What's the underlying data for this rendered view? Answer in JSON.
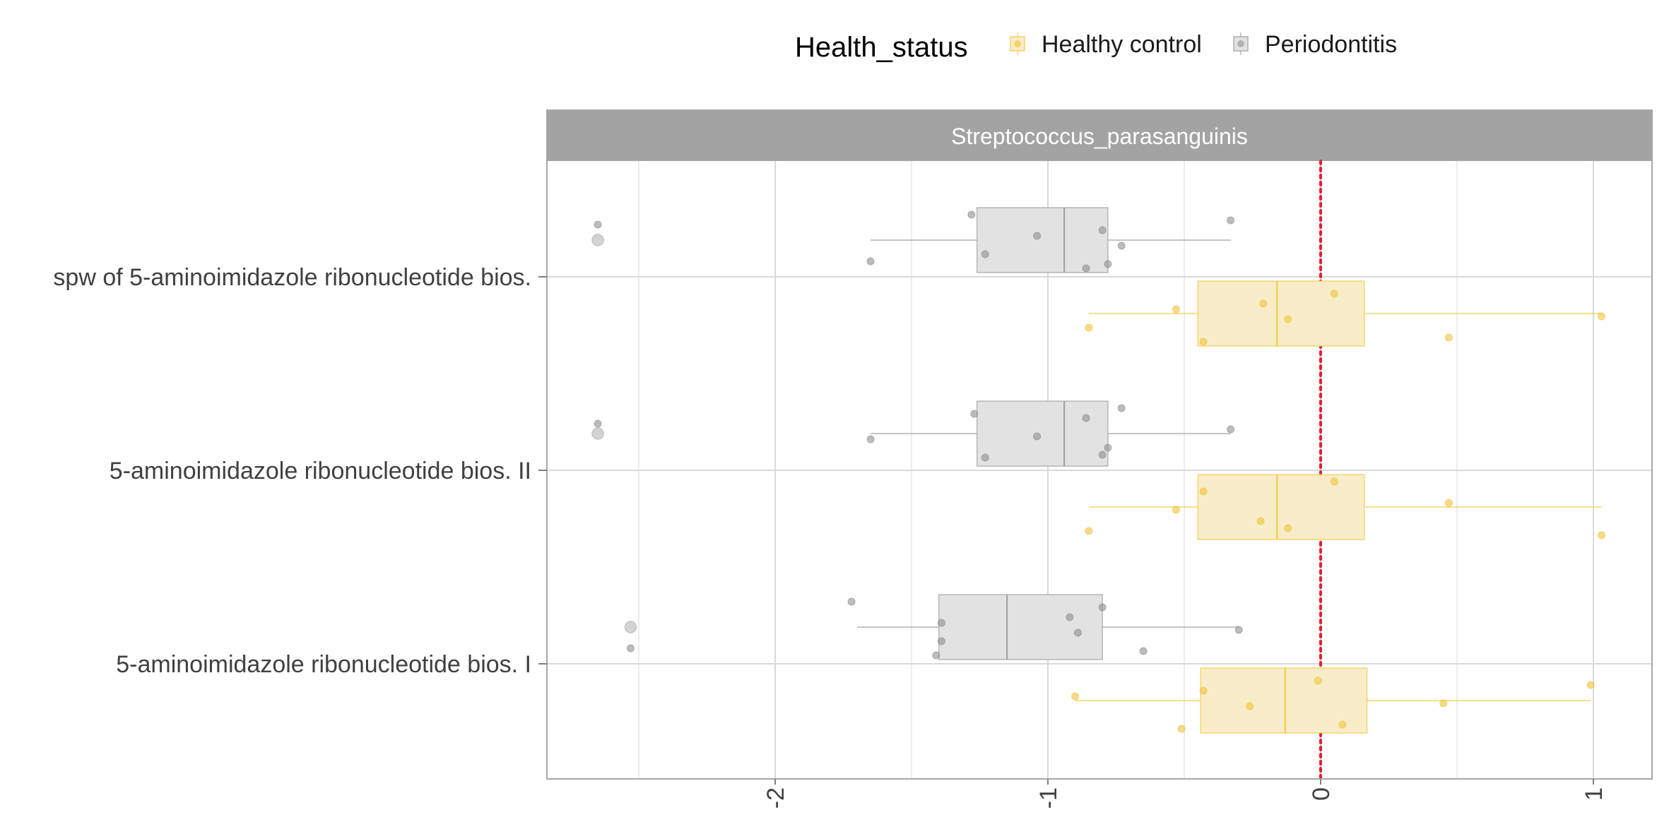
{
  "chart_data": {
    "type": "boxplot",
    "orientation": "horizontal",
    "facet_title": "Streptococcus_parasanguinis",
    "legend": {
      "title": "Health_status",
      "position": "top",
      "entries": [
        {
          "label": "Healthy control",
          "color": "#F5C842"
        },
        {
          "label": "Periodontitis",
          "color": "#9E9E9E"
        }
      ]
    },
    "reference_line": {
      "x": 0,
      "color": "#E8202A",
      "style": "dotted"
    },
    "xlim": [
      -2.85,
      1.2
    ],
    "x_ticks": [
      {
        "value": -2,
        "label": "-2"
      },
      {
        "value": -1,
        "label": "-1"
      },
      {
        "value": 0,
        "label": "0"
      },
      {
        "value": 1,
        "label": "1"
      }
    ],
    "x_minor_gridlines": [
      -2.5,
      -1.5,
      -0.5,
      0.5
    ],
    "grid": true,
    "categories": [
      "spw of 5-aminoimidazole ribonucleotide bios.",
      "5-aminoimidazole ribonucleotide bios. II",
      "5-aminoimidazole ribonucleotide bios. I"
    ],
    "colors": {
      "healthy_fill": "#F8EDC8",
      "healthy_line": "#F5C842",
      "perio_fill": "#E2E2E2",
      "perio_line": "#9E9E9E",
      "strip_bg": "#A3A3A3",
      "strip_text": "#FFFFFF",
      "grid": "#D9D9D9",
      "panel_border": "#A6A6A6",
      "axis_text": "#404040"
    },
    "boxes": [
      {
        "category": 0,
        "group": "Periodontitis",
        "whisker_low": -1.65,
        "q1": -1.26,
        "median": -0.94,
        "q3": -0.78,
        "whisker_high": -0.33,
        "outliers": [
          -2.65
        ]
      },
      {
        "category": 0,
        "group": "Healthy control",
        "whisker_low": -0.85,
        "q1": -0.45,
        "median": -0.16,
        "q3": 0.16,
        "whisker_high": 1.03,
        "outliers": []
      },
      {
        "category": 1,
        "group": "Periodontitis",
        "whisker_low": -1.65,
        "q1": -1.26,
        "median": -0.94,
        "q3": -0.78,
        "whisker_high": -0.33,
        "outliers": [
          -2.65
        ]
      },
      {
        "category": 1,
        "group": "Healthy control",
        "whisker_low": -0.85,
        "q1": -0.45,
        "median": -0.16,
        "q3": 0.16,
        "whisker_high": 1.03,
        "outliers": []
      },
      {
        "category": 2,
        "group": "Periodontitis",
        "whisker_low": -1.7,
        "q1": -1.4,
        "median": -1.15,
        "q3": -0.8,
        "whisker_high": -0.3,
        "outliers": [
          -2.53
        ]
      },
      {
        "category": 2,
        "group": "Healthy control",
        "whisker_low": -0.9,
        "q1": -0.44,
        "median": -0.13,
        "q3": 0.17,
        "whisker_high": 0.99,
        "outliers": []
      }
    ],
    "points": [
      {
        "category": 0,
        "group": "Periodontitis",
        "values": [
          -2.65,
          -1.65,
          -1.28,
          -1.23,
          -1.04,
          -0.86,
          -0.8,
          -0.73,
          -0.33,
          -0.78
        ]
      },
      {
        "category": 0,
        "group": "Healthy control",
        "values": [
          -0.85,
          -0.53,
          -0.43,
          -0.21,
          -0.12,
          0.05,
          0.47,
          1.03
        ]
      },
      {
        "category": 1,
        "group": "Periodontitis",
        "values": [
          -2.65,
          -1.65,
          -1.27,
          -1.23,
          -1.04,
          -0.86,
          -0.8,
          -0.73,
          -0.78,
          -0.33
        ]
      },
      {
        "category": 1,
        "group": "Healthy control",
        "values": [
          -0.85,
          -0.53,
          -0.43,
          -0.12,
          0.05,
          -0.22,
          0.47,
          1.03
        ]
      },
      {
        "category": 2,
        "group": "Periodontitis",
        "values": [
          -2.53,
          -1.72,
          -1.39,
          -1.39,
          -1.41,
          -0.92,
          -0.89,
          -0.8,
          -0.65,
          -0.3
        ]
      },
      {
        "category": 2,
        "group": "Healthy control",
        "values": [
          -0.9,
          -0.51,
          -0.43,
          -0.26,
          -0.01,
          0.08,
          0.45,
          0.99
        ]
      }
    ]
  }
}
